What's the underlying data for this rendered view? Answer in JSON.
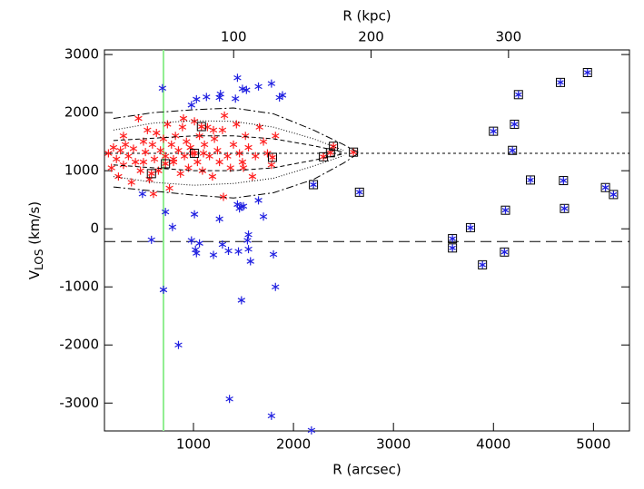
{
  "chart_data": {
    "type": "scatter",
    "xlabel": "R (arcsec)",
    "top_xlabel": "R (kpc)",
    "ylabel": {
      "main": "V",
      "sub": "LOS",
      "rest": " (km/s)"
    },
    "xlim": [
      110,
      5360
    ],
    "xticks": [
      1000,
      2000,
      3000,
      4000,
      5000
    ],
    "top_xlim": [
      6,
      388
    ],
    "top_xticks": [
      100,
      200,
      300
    ],
    "ylim": [
      -3480,
      3080
    ],
    "yticks": [
      -3000,
      -2000,
      -1000,
      0,
      1000,
      2000,
      3000
    ],
    "hlines": [
      {
        "value": 1300,
        "dash": "3,3",
        "color": "#000000"
      },
      {
        "value": -220,
        "dash": "12,6",
        "color": "#000000"
      }
    ],
    "vlines": [
      {
        "value": 700,
        "color": "#90ee90"
      }
    ],
    "series": [
      {
        "marker": "asterisk",
        "color": "#ff2020",
        "x": [
          150,
          180,
          200,
          230,
          250,
          270,
          300,
          320,
          350,
          380,
          400,
          420,
          450,
          470,
          500,
          520,
          540,
          560,
          590,
          610,
          630,
          650,
          670,
          700,
          720,
          740,
          760,
          780,
          800,
          820,
          850,
          870,
          890,
          910,
          930,
          950,
          970,
          990,
          1010,
          1040,
          1060,
          1090,
          1110,
          1140,
          1160,
          1190,
          1210,
          1240,
          1260,
          1290,
          1310,
          1340,
          1370,
          1400,
          1430,
          1460,
          1490,
          1520,
          1550,
          1590,
          1620,
          1660,
          1700,
          1740,
          1780,
          1820,
          300,
          500,
          800,
          1100,
          1300,
          900,
          600,
          1500,
          1200
        ],
        "values": [
          1300,
          1050,
          1400,
          1200,
          900,
          1350,
          1100,
          1450,
          1250,
          800,
          1380,
          1150,
          1900,
          1000,
          1500,
          1320,
          1700,
          850,
          1450,
          1200,
          1650,
          1000,
          1350,
          1550,
          1250,
          1800,
          700,
          1450,
          1150,
          1600,
          1350,
          950,
          1750,
          1250,
          1500,
          1050,
          1400,
          1300,
          1850,
          1150,
          1600,
          1000,
          1450,
          1750,
          1250,
          900,
          1550,
          1350,
          1150,
          1700,
          1950,
          1250,
          1050,
          1450,
          1800,
          1300,
          1150,
          1600,
          1400,
          900,
          1250,
          1750,
          1500,
          1300,
          1100,
          1600,
          1600,
          1150,
          1200,
          1300,
          550,
          1900,
          600,
          1050,
          1700
        ]
      },
      {
        "marker": "asterisk",
        "color": "#2020e0",
        "x": [
          690,
          980,
          1030,
          1130,
          1270,
          1260,
          1440,
          1420,
          1490,
          1650,
          1780,
          1860,
          1890,
          1530,
          490,
          580,
          720,
          790,
          700,
          850,
          980,
          1010,
          1020,
          1030,
          1060,
          1200,
          1260,
          1290,
          1350,
          1440,
          1460,
          1480,
          1500,
          1480,
          1550,
          1540,
          1550,
          1570,
          1650,
          1700,
          1800,
          1820,
          1780,
          1360,
          2180,
          1450
        ],
        "values": [
          2420,
          2130,
          2230,
          2270,
          2320,
          2260,
          2600,
          2240,
          2410,
          2450,
          2500,
          2260,
          2300,
          2390,
          600,
          -190,
          290,
          30,
          -1050,
          -2000,
          -200,
          250,
          -360,
          -420,
          -250,
          -450,
          170,
          -270,
          -380,
          420,
          350,
          380,
          390,
          -1230,
          -100,
          -200,
          -350,
          -560,
          490,
          210,
          -440,
          -1000,
          -3220,
          -2930,
          -3470,
          -390
        ]
      },
      {
        "marker": "boxed",
        "color": "#2020e0",
        "x": [
          2200,
          2660,
          3590,
          3590,
          3770,
          3890,
          4000,
          4110,
          4120,
          4190,
          4210,
          4250,
          4370,
          4670,
          4700,
          4710,
          4940,
          5120,
          5200
        ],
        "values": [
          760,
          630,
          -170,
          -330,
          20,
          -620,
          1680,
          -400,
          320,
          1350,
          1800,
          2310,
          840,
          2520,
          830,
          350,
          2690,
          710,
          590
        ]
      },
      {
        "marker": "boxed",
        "color": "#ff2020",
        "x": [
          580,
          720,
          1010,
          1080,
          1790,
          2300,
          2370,
          2400,
          2600
        ],
        "values": [
          950,
          1120,
          1300,
          1760,
          1230,
          1240,
          1310,
          1420,
          1320
        ]
      },
      {
        "marker": "line",
        "color": "#000000",
        "dash": "8,3,2,3",
        "x": [
          200,
          600,
          1000,
          1400,
          1800,
          2200,
          2500,
          2650
        ],
        "values": [
          1900,
          2000,
          2050,
          2080,
          1980,
          1700,
          1450,
          1310
        ]
      },
      {
        "marker": "line",
        "color": "#000000",
        "dash": "8,3,2,3",
        "x": [
          200,
          600,
          1000,
          1400,
          1800,
          2200,
          2500,
          2650
        ],
        "values": [
          720,
          650,
          580,
          530,
          620,
          850,
          1130,
          1300
        ]
      },
      {
        "marker": "line",
        "color": "#000000",
        "dash": "1,2",
        "x": [
          200,
          600,
          1000,
          1400,
          1800,
          2200,
          2500
        ],
        "values": [
          1700,
          1820,
          1860,
          1850,
          1750,
          1550,
          1350
        ]
      },
      {
        "marker": "line",
        "color": "#000000",
        "dash": "1,2",
        "x": [
          200,
          600,
          1000,
          1400,
          1800,
          2200,
          2500
        ],
        "values": [
          900,
          800,
          750,
          780,
          870,
          1080,
          1260
        ]
      },
      {
        "marker": "line",
        "color": "#000000",
        "dash": "5,3",
        "x": [
          200,
          600,
          1000,
          1400,
          1800,
          2200,
          2500
        ],
        "values": [
          1520,
          1560,
          1600,
          1600,
          1550,
          1430,
          1320
        ]
      },
      {
        "marker": "line",
        "color": "#000000",
        "dash": "5,3",
        "x": [
          200,
          600,
          1000,
          1400,
          1800,
          2200,
          2500
        ],
        "values": [
          1100,
          1050,
          1000,
          1000,
          1050,
          1180,
          1290
        ]
      }
    ]
  }
}
